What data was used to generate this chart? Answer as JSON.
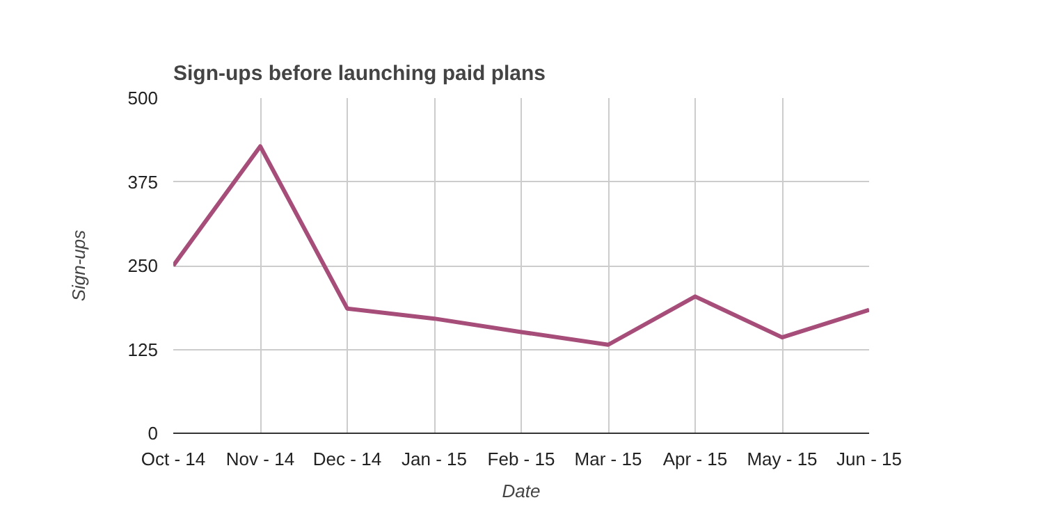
{
  "chart_data": {
    "type": "line",
    "title": "Sign-ups before launching paid plans",
    "xlabel": "Date",
    "ylabel": "Sign-ups",
    "categories": [
      "Oct - 14",
      "Nov - 14",
      "Dec - 14",
      "Jan - 15",
      "Feb - 15",
      "Mar - 15",
      "Apr - 15",
      "May - 15",
      "Jun - 15"
    ],
    "series": [
      {
        "color": "#a64d79",
        "values": [
          250,
          428,
          186,
          171,
          151,
          132,
          204,
          143,
          184
        ]
      }
    ],
    "ylim": [
      0,
      500
    ],
    "yticks": [
      0,
      125,
      250,
      375,
      500
    ],
    "grid": true,
    "marker": "none",
    "line_style": "solid"
  }
}
